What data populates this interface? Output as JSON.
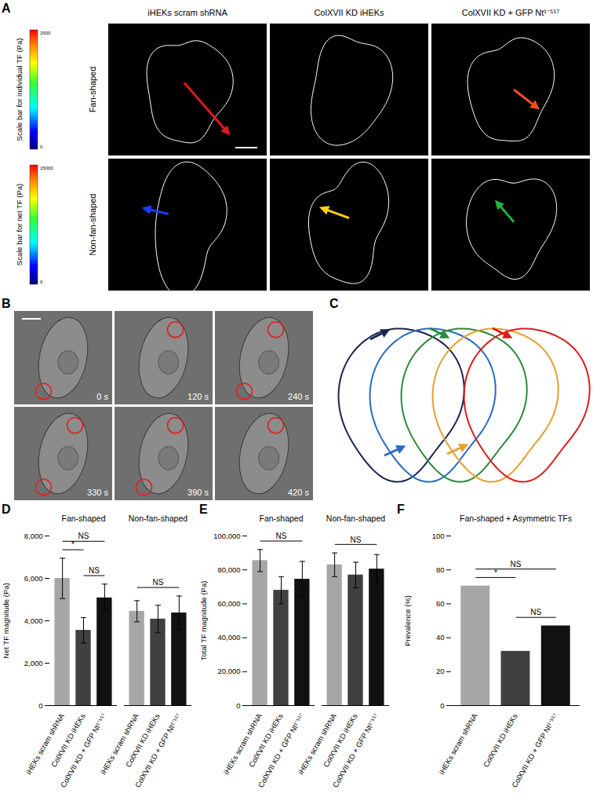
{
  "panel_a": {
    "label": "A",
    "columns": [
      "iHEKs scram shRNA",
      "ColXVII KD iHEKs",
      "ColXVII KD + GFP Nt¹⁻⁵¹⁷"
    ],
    "rows": [
      "Fan-shaped",
      "Non-fan-shaped"
    ],
    "colorbars": [
      {
        "title": "Scale bar for individual TF (Pa)",
        "ticks": [
          0,
          1500
        ]
      },
      {
        "title": "Scale bar for net TF (Pa)",
        "ticks": [
          0,
          15000
        ]
      }
    ]
  },
  "panel_b": {
    "label": "B",
    "times": [
      "0 s",
      "120 s",
      "240 s",
      "330 s",
      "390 s",
      "420 s"
    ]
  },
  "panel_c": {
    "label": "C"
  },
  "chart_data": [
    {
      "type": "bar",
      "panel": "D",
      "y_label": "Net TF magnitude (Pa)",
      "ylim": [
        0,
        8000
      ],
      "yticks": [
        0,
        {
          "value": 2000,
          "label": "2,000"
        },
        {
          "value": 4000,
          "label": "4,000"
        },
        {
          "value": 6000,
          "label": "6,000"
        },
        {
          "value": 8000,
          "label": "8,000"
        }
      ],
      "colors": [
        "#a6a6a6",
        "#404040",
        "#111111"
      ],
      "groups": [
        {
          "name": "Fan-shaped",
          "categories": [
            "iHEKs scram shRNA",
            "ColXVII KD iHEKs",
            "ColXVII KD + GFP Nt¹⁻⁵¹⁷"
          ],
          "values": [
            6000,
            3550,
            5080
          ],
          "errors": [
            950,
            600,
            650
          ],
          "comparisons": [
            {
              "from": "ColXVII KD iHEKs",
              "to": "ColXVII KD + GFP Nt¹⁻⁵¹⁷",
              "label": "NS"
            },
            {
              "from": "iHEKs scram shRNA",
              "to": "ColXVII KD iHEKs",
              "label": "*"
            },
            {
              "from": "iHEKs scram shRNA",
              "to": "ColXVII KD + GFP Nt¹⁻⁵¹⁷",
              "label": "NS"
            }
          ]
        },
        {
          "name": "Non-fan-shaped",
          "categories": [
            "iHEKs scram shRNA",
            "ColXVII KD iHEKs",
            "ColXVII KD + GFP Nt¹⁻⁵¹⁷"
          ],
          "values": [
            4450,
            4080,
            4370
          ],
          "errors": [
            500,
            650,
            800
          ],
          "comparisons": [
            {
              "from": "iHEKs scram shRNA",
              "to": "ColXVII KD + GFP Nt¹⁻⁵¹⁷",
              "label": "NS"
            }
          ]
        }
      ]
    },
    {
      "type": "bar",
      "panel": "E",
      "y_label": "Total TF magnitude (Pa)",
      "ylim": [
        0,
        100000
      ],
      "yticks": [
        0,
        {
          "value": 20000,
          "label": "20,000"
        },
        {
          "value": 40000,
          "label": "40,000"
        },
        {
          "value": 60000,
          "label": "60,000"
        },
        {
          "value": 80000,
          "label": "80,000"
        },
        {
          "value": 100000,
          "label": "100,000"
        }
      ],
      "colors": [
        "#a6a6a6",
        "#404040",
        "#111111"
      ],
      "groups": [
        {
          "name": "Fan-shaped",
          "categories": [
            "iHEKs scram shRNA",
            "ColXVII KD iHEKs",
            "ColXVII KD + GFP Nt¹⁻⁵¹⁷"
          ],
          "values": [
            85500,
            68000,
            74500
          ],
          "errors": [
            6500,
            8000,
            10500
          ],
          "comparisons": [
            {
              "from": "iHEKs scram shRNA",
              "to": "ColXVII KD + GFP Nt¹⁻⁵¹⁷",
              "label": "NS"
            }
          ]
        },
        {
          "name": "Non-fan-shaped",
          "categories": [
            "iHEKs scram shRNA",
            "ColXVII KD iHEKs",
            "ColXVII KD + GFP Nt¹⁻⁵¹⁷"
          ],
          "values": [
            83000,
            77000,
            80500
          ],
          "errors": [
            7000,
            7500,
            8500
          ],
          "comparisons": [
            {
              "from": "iHEKs scram shRNA",
              "to": "ColXVII KD + GFP Nt¹⁻⁵¹⁷",
              "label": "NS"
            }
          ]
        }
      ]
    },
    {
      "type": "bar",
      "panel": "F",
      "y_label": "Prevalence (%)",
      "ylim": [
        0,
        100
      ],
      "yticks": [
        0,
        20,
        40,
        60,
        80,
        100
      ],
      "colors": [
        "#a6a6a6",
        "#404040",
        "#111111"
      ],
      "groups": [
        {
          "name": "Fan-shaped + Asymmetric TFs",
          "categories": [
            "iHEKs scram shRNA",
            "ColXVII KD iHEKs",
            "ColXVII KD + GFP Nt¹⁻⁵¹⁷"
          ],
          "values": [
            70.5,
            32,
            47
          ],
          "comparisons": [
            {
              "from": "ColXVII KD iHEKs",
              "to": "ColXVII KD + GFP Nt¹⁻⁵¹⁷",
              "label": "NS"
            },
            {
              "from": "iHEKs scram shRNA",
              "to": "ColXVII KD iHEKs",
              "label": "*"
            },
            {
              "from": "iHEKs scram shRNA",
              "to": "ColXVII KD + GFP Nt¹⁻⁵¹⁷",
              "label": "NS"
            }
          ]
        }
      ]
    }
  ]
}
